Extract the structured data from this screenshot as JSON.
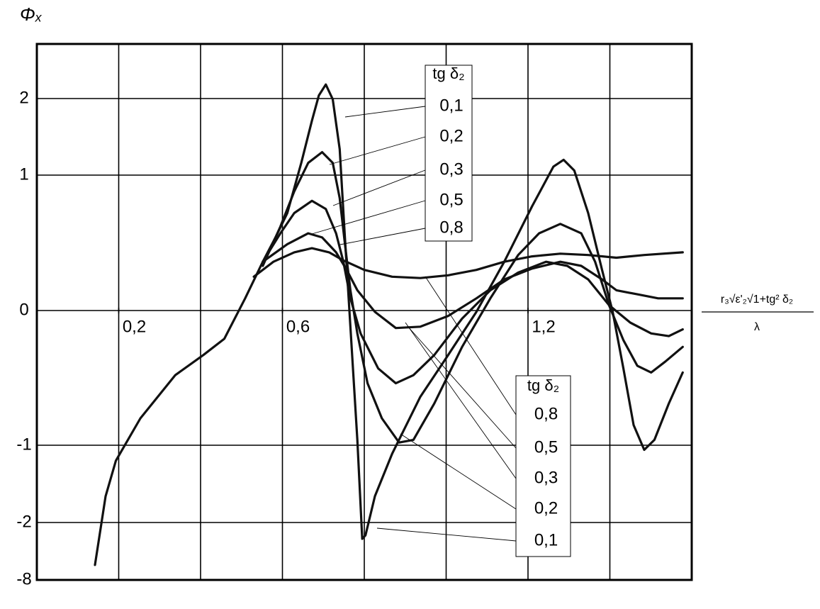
{
  "chart_data": {
    "type": "line",
    "ylabel": "Φₓ",
    "xlabel": {
      "numerator": "r₃√ε'₂√1+tg² δ₂",
      "denominator": "λ"
    },
    "legend_title": "tg δ₂",
    "xlim": [
      0,
      1.6
    ],
    "ylim": [
      -8,
      2.7
    ],
    "xticks": [
      {
        "value": 0.2,
        "label": "0,2"
      },
      {
        "value": 0.6,
        "label": "0,6"
      },
      {
        "value": 1.2,
        "label": "1,2"
      }
    ],
    "xgrid": [
      0.2,
      0.4,
      0.6,
      0.8,
      1.0,
      1.2,
      1.4
    ],
    "yticks": [
      2,
      1,
      0,
      -1,
      -2,
      -8
    ],
    "grid": true,
    "series": [
      {
        "name": "0,1",
        "color": "#111",
        "x": [
          0.142,
          0.168,
          0.193,
          0.253,
          0.338,
          0.407,
          0.458,
          0.509,
          0.552,
          0.583,
          0.612,
          0.646,
          0.672,
          0.689,
          0.706,
          0.723,
          0.74,
          0.752,
          0.766,
          0.783,
          0.795,
          0.803,
          0.826,
          0.868,
          0.937,
          1.005,
          1.074,
          1.142,
          1.21,
          1.262,
          1.287,
          1.313,
          1.347,
          1.381,
          1.407,
          1.433,
          1.458,
          1.484,
          1.509,
          1.544,
          1.578
        ],
        "values": [
          -6.44,
          -1.66,
          -1.2,
          -0.8,
          -0.48,
          -0.33,
          -0.21,
          0.09,
          0.36,
          0.54,
          0.72,
          1.16,
          1.71,
          2.04,
          2.18,
          1.99,
          1.34,
          0.57,
          -0.12,
          -0.96,
          -3.7,
          -3.33,
          -1.66,
          -1.11,
          -0.64,
          -0.33,
          -0.01,
          0.36,
          0.77,
          1.11,
          1.2,
          1.06,
          0.72,
          0.3,
          -0.01,
          -0.43,
          -0.85,
          -1.06,
          -0.96,
          -0.69,
          -0.46
        ]
      },
      {
        "name": "0,2",
        "color": "#111",
        "x": [
          0.552,
          0.595,
          0.629,
          0.663,
          0.697,
          0.723,
          0.74,
          0.752,
          0.766,
          0.783,
          0.808,
          0.843,
          0.885,
          0.92,
          0.971,
          1.039,
          1.108,
          1.176,
          1.227,
          1.279,
          1.33,
          1.364,
          1.398,
          1.433,
          1.467,
          1.501,
          1.535,
          1.578
        ],
        "values": [
          0.33,
          0.62,
          0.88,
          1.16,
          1.3,
          1.16,
          0.83,
          0.51,
          0.15,
          -0.17,
          -0.54,
          -0.8,
          -0.98,
          -0.96,
          -0.69,
          -0.27,
          0.09,
          0.41,
          0.57,
          0.64,
          0.57,
          0.36,
          0.04,
          -0.22,
          -0.41,
          -0.46,
          -0.38,
          -0.27
        ]
      },
      {
        "name": "0,3",
        "color": "#111",
        "x": [
          0.552,
          0.595,
          0.629,
          0.672,
          0.706,
          0.731,
          0.749,
          0.766,
          0.791,
          0.834,
          0.877,
          0.92,
          0.971,
          1.039,
          1.108,
          1.176,
          1.244,
          1.296,
          1.347,
          1.398,
          1.45,
          1.501,
          1.544,
          1.578
        ],
        "values": [
          0.36,
          0.57,
          0.72,
          0.81,
          0.75,
          0.57,
          0.36,
          0.09,
          -0.17,
          -0.43,
          -0.54,
          -0.48,
          -0.33,
          -0.06,
          0.15,
          0.28,
          0.36,
          0.33,
          0.23,
          0.04,
          -0.09,
          -0.17,
          -0.19,
          -0.14
        ]
      },
      {
        "name": "0,5",
        "color": "#111",
        "x": [
          0.552,
          0.612,
          0.663,
          0.697,
          0.731,
          0.757,
          0.783,
          0.826,
          0.877,
          0.937,
          1.005,
          1.074,
          1.142,
          1.21,
          1.279,
          1.33,
          1.381,
          1.416,
          1.467,
          1.518,
          1.578
        ],
        "values": [
          0.36,
          0.49,
          0.57,
          0.54,
          0.43,
          0.3,
          0.15,
          -0.01,
          -0.13,
          -0.12,
          -0.04,
          0.09,
          0.23,
          0.31,
          0.36,
          0.33,
          0.23,
          0.15,
          0.12,
          0.09,
          0.09
        ]
      },
      {
        "name": "0,8",
        "color": "#111",
        "x": [
          0.53,
          0.578,
          0.629,
          0.672,
          0.714,
          0.749,
          0.8,
          0.868,
          0.937,
          1.005,
          1.074,
          1.142,
          1.21,
          1.279,
          1.347,
          1.416,
          1.484,
          1.578
        ],
        "values": [
          0.25,
          0.36,
          0.43,
          0.46,
          0.43,
          0.37,
          0.3,
          0.25,
          0.24,
          0.26,
          0.3,
          0.36,
          0.4,
          0.42,
          0.41,
          0.39,
          0.41,
          0.43
        ]
      }
    ]
  }
}
